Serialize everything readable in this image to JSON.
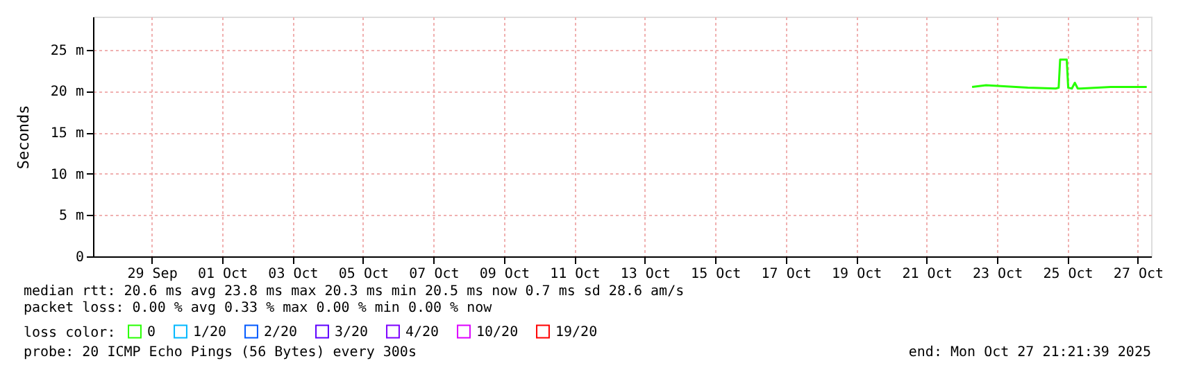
{
  "chart_data": {
    "type": "line",
    "ylabel": "Seconds",
    "legend_title": "loss color:",
    "legend": "bottom",
    "grid": true,
    "marker": "none",
    "line_style": "solid",
    "x": [
      "2025-10-22T19:00",
      "2025-10-23T04:30",
      "2025-10-24T09:00",
      "2025-10-25T04:00",
      "2025-10-25T06:00",
      "2025-10-25T07:00",
      "2025-10-25T11:30",
      "2025-10-25T12:30",
      "2025-10-25T15:00",
      "2025-10-25T17:00",
      "2025-10-25T19:00",
      "2025-10-25T21:00",
      "2025-10-26T17:30",
      "2025-10-27T18:00"
    ],
    "series": [
      {
        "name": "0",
        "color": "#26ff00",
        "values": [
          20.5,
          20.7,
          20.4,
          20.3,
          20.4,
          23.8,
          23.8,
          20.4,
          20.3,
          21.0,
          20.3,
          20.3,
          20.5,
          20.5
        ]
      },
      {
        "name": "1/20",
        "color": "#00b8ff",
        "values": [
          null,
          null,
          null,
          null,
          null,
          null,
          null,
          null,
          null,
          null,
          null,
          null,
          null,
          null
        ]
      },
      {
        "name": "2/20",
        "color": "#0059ff",
        "values": [
          null,
          null,
          null,
          null,
          null,
          null,
          null,
          null,
          null,
          null,
          null,
          null,
          null,
          null
        ]
      },
      {
        "name": "3/20",
        "color": "#5e00ff",
        "values": [
          null,
          null,
          null,
          null,
          null,
          null,
          null,
          null,
          null,
          null,
          null,
          null,
          null,
          null
        ]
      },
      {
        "name": "4/20",
        "color": "#7e00ff",
        "values": [
          null,
          null,
          null,
          null,
          null,
          null,
          null,
          null,
          null,
          null,
          null,
          null,
          null,
          null
        ]
      },
      {
        "name": "10/20",
        "color": "#dd00ff",
        "values": [
          null,
          null,
          null,
          null,
          null,
          null,
          null,
          null,
          null,
          null,
          null,
          null,
          null,
          null
        ]
      },
      {
        "name": "19/20",
        "color": "#ff0000",
        "values": [
          null,
          null,
          null,
          null,
          null,
          null,
          null,
          null,
          null,
          null,
          null,
          null,
          null,
          null
        ]
      }
    ],
    "xlim": [
      "2025-09-27T20:00",
      "2025-10-27T21:00"
    ],
    "xticks": [
      {
        "value": "2025-09-29T12:00",
        "label": "29 Sep"
      },
      {
        "value": "2025-10-01T12:00",
        "label": "01 Oct"
      },
      {
        "value": "2025-10-03T12:00",
        "label": "03 Oct"
      },
      {
        "value": "2025-10-05T12:00",
        "label": "05 Oct"
      },
      {
        "value": "2025-10-07T12:00",
        "label": "07 Oct"
      },
      {
        "value": "2025-10-09T12:00",
        "label": "09 Oct"
      },
      {
        "value": "2025-10-11T12:00",
        "label": "11 Oct"
      },
      {
        "value": "2025-10-13T12:00",
        "label": "13 Oct"
      },
      {
        "value": "2025-10-15T12:00",
        "label": "15 Oct"
      },
      {
        "value": "2025-10-17T12:00",
        "label": "17 Oct"
      },
      {
        "value": "2025-10-19T12:00",
        "label": "19 Oct"
      },
      {
        "value": "2025-10-21T12:00",
        "label": "21 Oct"
      },
      {
        "value": "2025-10-23T12:00",
        "label": "23 Oct"
      },
      {
        "value": "2025-10-25T12:00",
        "label": "25 Oct"
      },
      {
        "value": "2025-10-27T12:00",
        "label": "27 Oct"
      }
    ],
    "ylim": [
      0,
      29
    ],
    "yticks": [
      0,
      {
        "value": 5,
        "label": "5 m"
      },
      {
        "value": 10,
        "label": "10 m"
      },
      {
        "value": 15,
        "label": "15 m"
      },
      {
        "value": 20,
        "label": "20 m"
      },
      {
        "value": 25,
        "label": "25 m"
      }
    ],
    "annotations": [
      "median rtt:  20.6 ms avg  23.8 ms max  20.3 ms min  20.5 ms now  0.7 ms sd  28.6   am/s",
      "packet loss: 0.00 % avg  0.33 % max  0.00 % min  0.00 % now",
      "probe:       20 ICMP Echo Pings (56 Bytes) every 300s",
      "end: Mon Oct 27 21:21:39 2025"
    ]
  }
}
